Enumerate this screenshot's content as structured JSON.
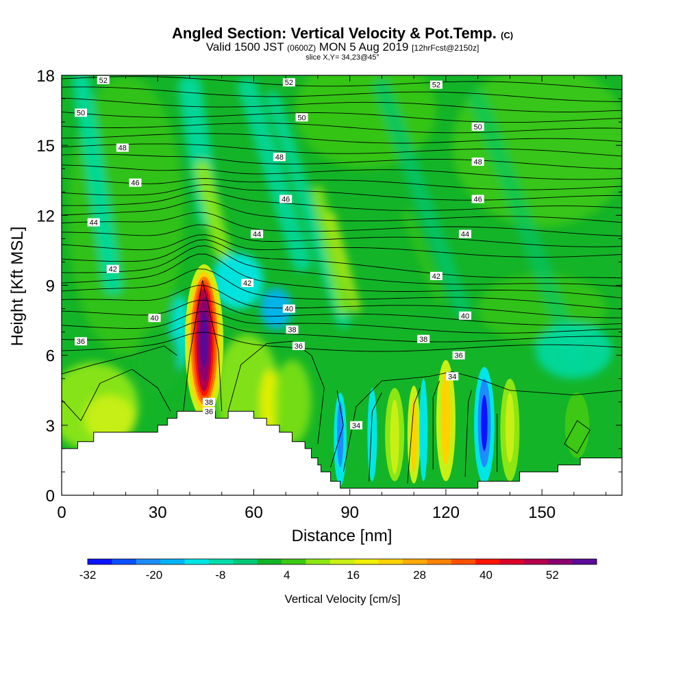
{
  "header": {
    "title": "Angled Section: Vertical Velocity & Pot.Temp.",
    "title_mark": "(C)",
    "valid_label": "Valid 1500 JST",
    "valid_utc": "(0600Z)",
    "valid_date": "MON 5 Aug 2019",
    "forecast": "[12hrFcst@2150z]",
    "slice": "slice X,Y= 34,23@45°"
  },
  "chart_data": {
    "type": "heatmap",
    "xlabel": "Distance [nm]",
    "ylabel": "Height [Kft MSL]",
    "xlim": [
      0,
      175
    ],
    "ylim": [
      0,
      18
    ],
    "x_ticks": [
      0,
      30,
      60,
      90,
      120,
      150
    ],
    "y_ticks": [
      0,
      3,
      6,
      9,
      12,
      15,
      18
    ],
    "colorbar": {
      "label": "Vertical Velocity [cm/s]",
      "tick_values": [
        -32,
        -20,
        -8,
        4,
        16,
        28,
        40,
        52
      ],
      "min": -32,
      "max": 60,
      "colors": [
        "#0a14ff",
        "#0a50ff",
        "#1e8cff",
        "#00b4ff",
        "#00e6e6",
        "#00dcaa",
        "#00c878",
        "#14b428",
        "#3cc814",
        "#8ce614",
        "#c8f014",
        "#f0f000",
        "#ffd200",
        "#ffaa00",
        "#ff8200",
        "#ff5000",
        "#ff1400",
        "#dc0028",
        "#b4004b",
        "#8c006e",
        "#5a0a96"
      ]
    },
    "terrain": [
      [
        0,
        2
      ],
      [
        5,
        2
      ],
      [
        5,
        2.3
      ],
      [
        10,
        2.3
      ],
      [
        10,
        2.7
      ],
      [
        30,
        2.7
      ],
      [
        30,
        3
      ],
      [
        33,
        3
      ],
      [
        33,
        3.3
      ],
      [
        36,
        3.3
      ],
      [
        36,
        3.6
      ],
      [
        48,
        3.6
      ],
      [
        48,
        3.3
      ],
      [
        52,
        3.3
      ],
      [
        52,
        3.6
      ],
      [
        60,
        3.6
      ],
      [
        60,
        3.3
      ],
      [
        64,
        3.3
      ],
      [
        64,
        3
      ],
      [
        68,
        3
      ],
      [
        68,
        2.7
      ],
      [
        72,
        2.7
      ],
      [
        72,
        2.3
      ],
      [
        76,
        2.3
      ],
      [
        76,
        2
      ],
      [
        78,
        2
      ],
      [
        78,
        1.6
      ],
      [
        80,
        1.6
      ],
      [
        80,
        1.3
      ],
      [
        81,
        1.3
      ],
      [
        81,
        1
      ],
      [
        84,
        1
      ],
      [
        84,
        0.6
      ],
      [
        87,
        0.6
      ],
      [
        87,
        0.3
      ],
      [
        130,
        0.3
      ],
      [
        130,
        0.6
      ],
      [
        143,
        0.6
      ],
      [
        143,
        1
      ],
      [
        155,
        1
      ],
      [
        155,
        1.3
      ],
      [
        162,
        1.3
      ],
      [
        162,
        1.6
      ],
      [
        175,
        1.6
      ]
    ],
    "theta_labels": [
      {
        "text": "52",
        "x": 13,
        "y": 17.8
      },
      {
        "text": "52",
        "x": 71,
        "y": 17.7
      },
      {
        "text": "52",
        "x": 117,
        "y": 17.6
      },
      {
        "text": "50",
        "x": 6,
        "y": 16.4
      },
      {
        "text": "50",
        "x": 75,
        "y": 16.2
      },
      {
        "text": "50",
        "x": 130,
        "y": 15.8
      },
      {
        "text": "48",
        "x": 19,
        "y": 14.9
      },
      {
        "text": "48",
        "x": 68,
        "y": 14.5
      },
      {
        "text": "48",
        "x": 130,
        "y": 14.3
      },
      {
        "text": "46",
        "x": 23,
        "y": 13.4
      },
      {
        "text": "46",
        "x": 70,
        "y": 12.7
      },
      {
        "text": "46",
        "x": 130,
        "y": 12.7
      },
      {
        "text": "44",
        "x": 10,
        "y": 11.7
      },
      {
        "text": "44",
        "x": 61,
        "y": 11.2
      },
      {
        "text": "44",
        "x": 126,
        "y": 11.2
      },
      {
        "text": "42",
        "x": 16,
        "y": 9.7
      },
      {
        "text": "42",
        "x": 58,
        "y": 9.1
      },
      {
        "text": "42",
        "x": 117,
        "y": 9.4
      },
      {
        "text": "40",
        "x": 29,
        "y": 7.6
      },
      {
        "text": "40",
        "x": 71,
        "y": 8.0
      },
      {
        "text": "40",
        "x": 126,
        "y": 7.7
      },
      {
        "text": "38",
        "x": 72,
        "y": 7.1
      },
      {
        "text": "38",
        "x": 113,
        "y": 6.7
      },
      {
        "text": "36",
        "x": 6,
        "y": 6.6
      },
      {
        "text": "36",
        "x": 74,
        "y": 6.4
      },
      {
        "text": "36",
        "x": 124,
        "y": 6.0
      },
      {
        "text": "34",
        "x": 122,
        "y": 5.1
      },
      {
        "text": "34",
        "x": 92,
        "y": 3.0
      },
      {
        "text": "38",
        "x": 46,
        "y": 4.0
      },
      {
        "text": "36",
        "x": 46,
        "y": 3.6
      }
    ]
  }
}
